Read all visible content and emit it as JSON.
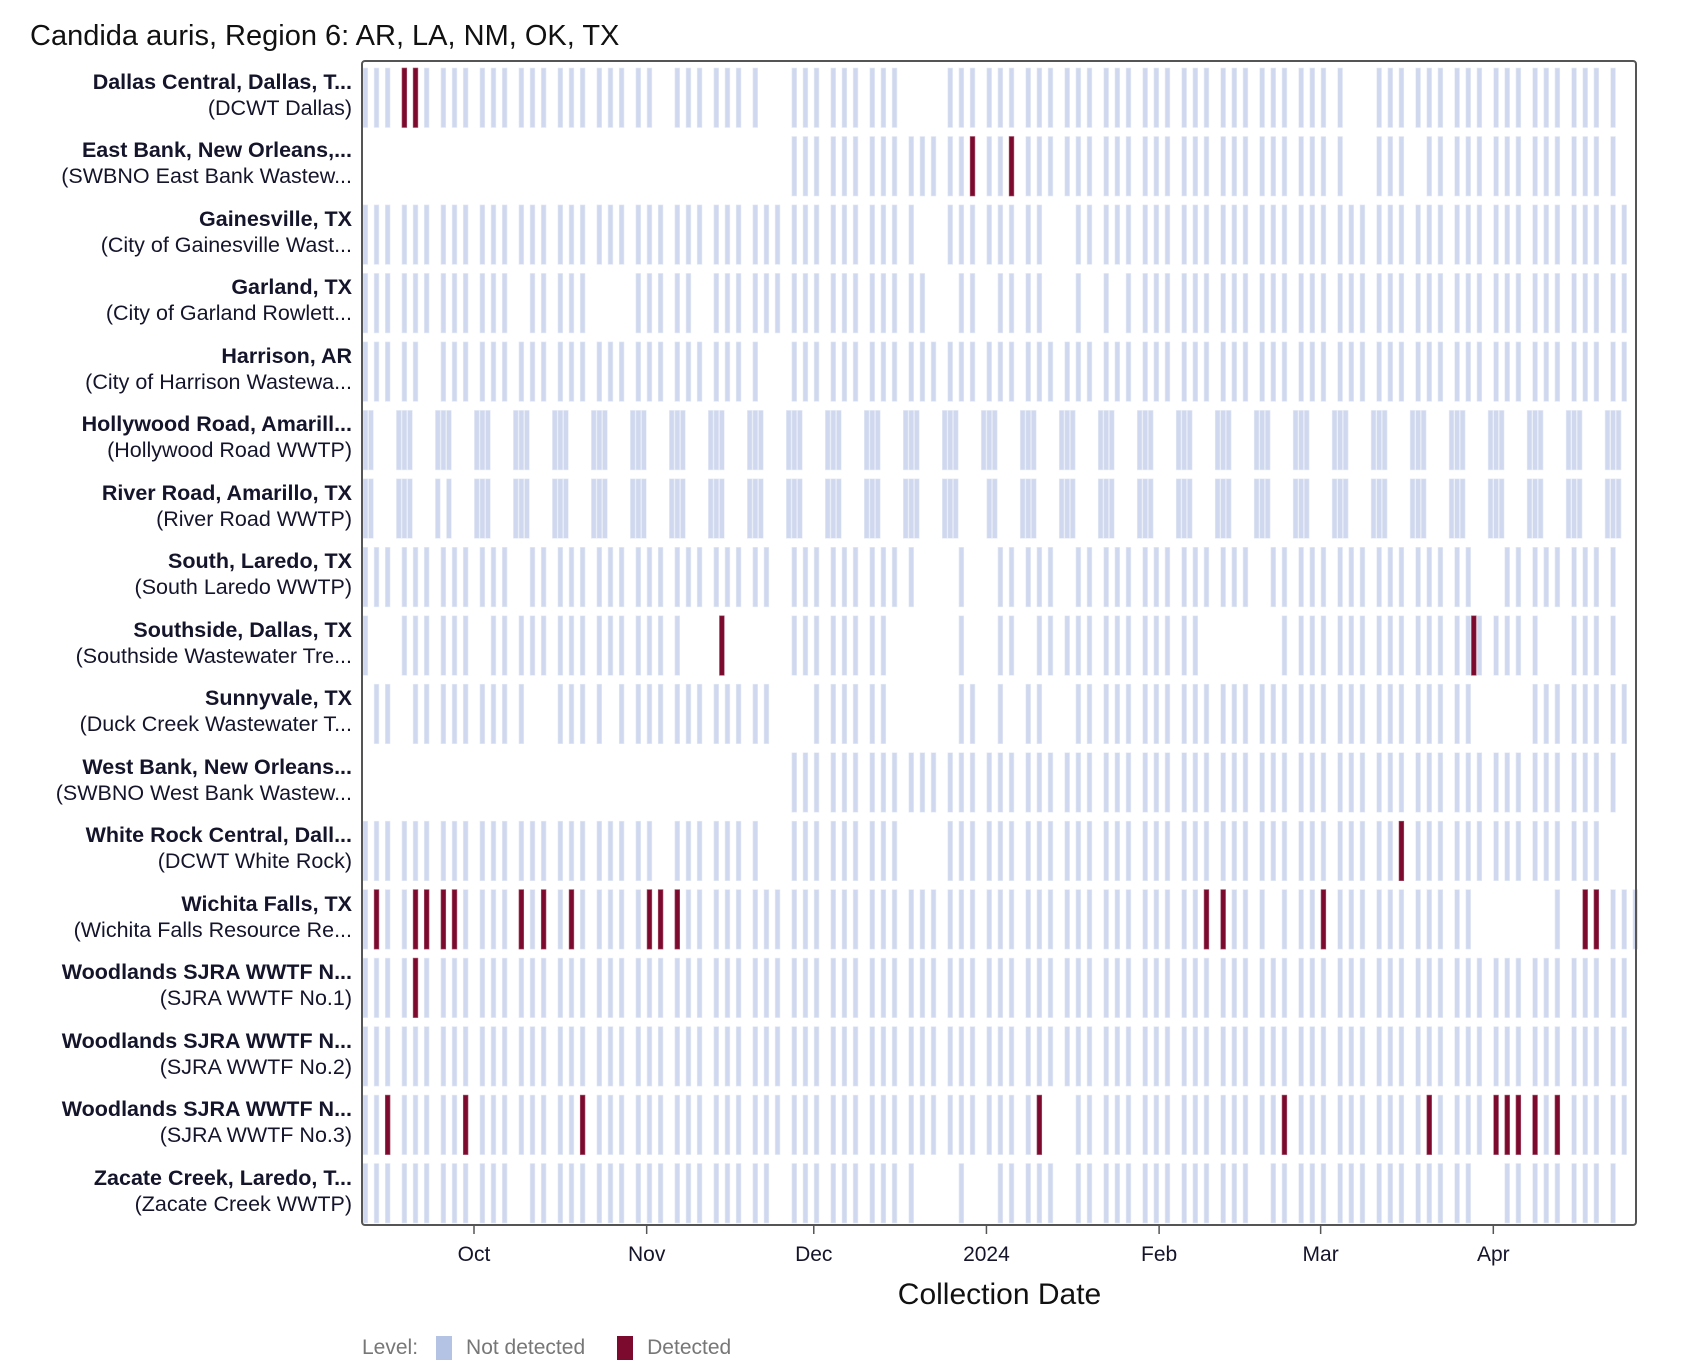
{
  "chart_data": {
    "type": "heatmap",
    "title": "Candida auris, Region 6: AR, LA, NM, OK, TX",
    "xlabel": "Collection Date",
    "xlim": [
      "2023-09-11",
      "2024-04-26"
    ],
    "x_ticks": [
      {
        "label": "Oct",
        "date": "2023-10-01"
      },
      {
        "label": "Nov",
        "date": "2023-11-01"
      },
      {
        "label": "Dec",
        "date": "2023-12-01"
      },
      {
        "label": "2024",
        "date": "2024-01-01"
      },
      {
        "label": "Feb",
        "date": "2024-02-01"
      },
      {
        "label": "Mar",
        "date": "2024-03-01"
      },
      {
        "label": "Apr",
        "date": "2024-04-01"
      }
    ],
    "legend": {
      "title": "Level:",
      "position": "bottom-left",
      "items": [
        {
          "label": "Not detected",
          "color": "#b4c3e4"
        },
        {
          "label": "Detected",
          "color": "#7b0a2e"
        }
      ]
    },
    "colors": {
      "not_detected": "#cfd8ee",
      "detected": "#7b0a2e",
      "frame": "#555555"
    },
    "rows": [
      {
        "site": "Dallas Central, Dallas, T...",
        "plant": "(DCWT Dallas)",
        "sample_days": [
          "Mon",
          "Wed",
          "Fri"
        ],
        "first_sample": "2023-09-11",
        "last_sample": "2024-04-22",
        "missing": [
          [
            "2023-11-03",
            "2023-11-03"
          ],
          [
            "2023-11-22",
            "2023-11-24"
          ],
          [
            "2023-12-18",
            "2023-12-22"
          ],
          [
            "2024-03-06",
            "2024-03-08"
          ]
        ],
        "detected": [
          "2023-09-18",
          "2023-09-20"
        ]
      },
      {
        "site": "East Bank, New Orleans,...",
        "plant": "(SWBNO East Bank Wastew...",
        "sample_days": [
          "Mon",
          "Wed",
          "Fri"
        ],
        "first_sample": "2023-11-27",
        "last_sample": "2024-04-22",
        "missing": [
          [
            "2024-03-06",
            "2024-03-08"
          ],
          [
            "2024-03-18",
            "2024-03-18"
          ]
        ],
        "detected": [
          "2023-12-29",
          "2024-01-05"
        ]
      },
      {
        "site": "Gainesville, TX",
        "plant": "(City of Gainesville Wast...",
        "sample_days": [
          "Mon",
          "Wed",
          "Fri"
        ],
        "first_sample": "2023-09-11",
        "last_sample": "2024-04-24",
        "missing": [
          [
            "2023-12-20",
            "2023-12-22"
          ],
          [
            "2024-01-12",
            "2024-01-15"
          ]
        ],
        "detected": []
      },
      {
        "site": "Garland, TX",
        "plant": "(City of Garland Rowlett...",
        "sample_days": [
          "Mon",
          "Wed",
          "Fri"
        ],
        "first_sample": "2023-09-11",
        "last_sample": "2024-04-24",
        "missing": [
          [
            "2023-10-09",
            "2023-10-09"
          ],
          [
            "2023-10-23",
            "2023-10-27"
          ],
          [
            "2023-11-10",
            "2023-11-10"
          ],
          [
            "2023-12-22",
            "2023-12-25"
          ],
          [
            "2024-01-01",
            "2024-01-01"
          ],
          [
            "2024-01-12",
            "2024-01-15"
          ],
          [
            "2024-01-19",
            "2024-01-19"
          ],
          [
            "2024-01-24",
            "2024-01-24"
          ]
        ],
        "detected": []
      },
      {
        "site": "Harrison, AR",
        "plant": "(City of Harrison Wastewa...",
        "sample_days": [
          "Mon",
          "Wed",
          "Fri"
        ],
        "first_sample": "2023-09-11",
        "last_sample": "2024-04-24",
        "missing": [
          [
            "2023-09-22",
            "2023-09-22"
          ],
          [
            "2023-11-22",
            "2023-11-24"
          ]
        ],
        "detected": []
      },
      {
        "site": "Hollywood Road, Amarill...",
        "plant": "(Hollywood Road WWTP)",
        "sample_days": [
          "Sun",
          "Mon",
          "Tue"
        ],
        "first_sample": "2023-09-11",
        "last_sample": "2024-04-23",
        "missing": [],
        "detected": []
      },
      {
        "site": "River Road, Amarillo, TX",
        "plant": "(River Road WWTP)",
        "sample_days": [
          "Sun",
          "Mon",
          "Tue"
        ],
        "first_sample": "2023-09-11",
        "last_sample": "2024-04-23",
        "missing": [
          [
            "2023-09-25",
            "2023-09-25"
          ],
          [
            "2023-12-31",
            "2023-12-31"
          ]
        ],
        "detected": []
      },
      {
        "site": "South, Laredo, TX",
        "plant": "(South Laredo WWTP)",
        "sample_days": [
          "Mon",
          "Wed",
          "Fri"
        ],
        "first_sample": "2023-09-11",
        "last_sample": "2024-04-22",
        "missing": [
          [
            "2023-10-09",
            "2023-10-09"
          ],
          [
            "2023-11-24",
            "2023-11-24"
          ],
          [
            "2023-12-20",
            "2023-12-26"
          ],
          [
            "2023-12-29",
            "2024-01-01"
          ],
          [
            "2024-01-15",
            "2024-01-15"
          ],
          [
            "2024-02-19",
            "2024-02-19"
          ],
          [
            "2024-03-29",
            "2024-04-01"
          ]
        ],
        "detected": []
      },
      {
        "site": "Southside, Dallas, TX",
        "plant": "(Southside Wastewater Tre...",
        "sample_days": [
          "Mon",
          "Wed",
          "Fri"
        ],
        "first_sample": "2023-09-11",
        "last_sample": "2024-04-22",
        "missing": [
          [
            "2023-09-13",
            "2023-09-15"
          ],
          [
            "2023-10-02",
            "2023-10-02"
          ],
          [
            "2023-11-08",
            "2023-11-13"
          ],
          [
            "2023-11-15",
            "2023-11-26"
          ],
          [
            "2023-12-15",
            "2023-12-26"
          ],
          [
            "2023-12-28",
            "2024-01-02"
          ],
          [
            "2024-01-08",
            "2024-01-08"
          ],
          [
            "2024-02-09",
            "2024-02-21"
          ],
          [
            "2024-04-10",
            "2024-04-12"
          ]
        ],
        "detected": [
          "2023-11-14",
          "2024-03-28"
        ]
      },
      {
        "site": "Sunnyvale, TX",
        "plant": "(Duck Creek Wastewater T...",
        "sample_days": [
          "Mon",
          "Wed",
          "Fri"
        ],
        "first_sample": "2023-09-13",
        "last_sample": "2024-04-24",
        "missing": [
          [
            "2023-09-18",
            "2023-09-18"
          ],
          [
            "2023-10-11",
            "2023-10-13"
          ],
          [
            "2023-10-25",
            "2023-10-25"
          ],
          [
            "2023-11-23",
            "2023-11-29"
          ],
          [
            "2023-12-15",
            "2023-12-18"
          ],
          [
            "2023-12-20",
            "2023-12-26"
          ],
          [
            "2023-12-31",
            "2024-01-02"
          ],
          [
            "2024-01-05",
            "2024-01-05"
          ],
          [
            "2024-01-12",
            "2024-01-15"
          ],
          [
            "2024-03-29",
            "2024-04-05"
          ]
        ],
        "detected": []
      },
      {
        "site": "West Bank, New Orleans...",
        "plant": "(SWBNO West Bank Wastew...",
        "sample_days": [
          "Mon",
          "Wed",
          "Fri"
        ],
        "first_sample": "2023-11-27",
        "last_sample": "2024-04-22",
        "missing": [],
        "detected": []
      },
      {
        "site": "White Rock Central, Dall...",
        "plant": "(DCWT White Rock)",
        "sample_days": [
          "Mon",
          "Wed",
          "Fri"
        ],
        "first_sample": "2023-09-11",
        "last_sample": "2024-04-19",
        "missing": [
          [
            "2023-11-03",
            "2023-11-03"
          ],
          [
            "2023-11-22",
            "2023-11-24"
          ],
          [
            "2023-12-18",
            "2023-12-22"
          ]
        ],
        "detected": [
          "2024-03-15"
        ]
      },
      {
        "site": "Wichita Falls, TX",
        "plant": "(Wichita Falls Resource Re...",
        "sample_days": [
          "Mon",
          "Wed",
          "Fri"
        ],
        "first_sample": "2023-09-11",
        "last_sample": "2024-04-26",
        "missing": [
          [
            "2024-02-21",
            "2024-02-21"
          ],
          [
            "2024-03-29",
            "2024-04-10"
          ],
          [
            "2024-04-15",
            "2024-04-15"
          ]
        ],
        "detected": [
          "2023-09-13",
          "2023-09-20",
          "2023-09-22",
          "2023-09-25",
          "2023-09-27",
          "2023-10-09",
          "2023-10-13",
          "2023-10-18",
          "2023-11-01",
          "2023-11-03",
          "2023-11-06",
          "2024-02-09",
          "2024-02-12",
          "2024-03-01",
          "2024-04-17",
          "2024-04-19"
        ]
      },
      {
        "site": "Woodlands SJRA WWTF N...",
        "plant": "(SJRA WWTF No.1)",
        "sample_days": [
          "Mon",
          "Wed",
          "Fri"
        ],
        "first_sample": "2023-09-11",
        "last_sample": "2024-04-24",
        "missing": [],
        "detected": [
          "2023-09-20"
        ]
      },
      {
        "site": "Woodlands SJRA WWTF N...",
        "plant": "(SJRA WWTF No.2)",
        "sample_days": [
          "Mon",
          "Wed",
          "Fri"
        ],
        "first_sample": "2023-09-11",
        "last_sample": "2024-04-24",
        "missing": [],
        "detected": []
      },
      {
        "site": "Woodlands SJRA WWTF N...",
        "plant": "(SJRA WWTF No.3)",
        "sample_days": [
          "Mon",
          "Wed",
          "Fri"
        ],
        "first_sample": "2023-09-11",
        "last_sample": "2024-04-24",
        "missing": [
          [
            "2024-01-12",
            "2024-01-15"
          ]
        ],
        "detected": [
          "2023-09-15",
          "2023-09-29",
          "2023-10-20",
          "2024-01-10",
          "2024-02-23",
          "2024-03-20",
          "2024-04-01",
          "2024-04-03",
          "2024-04-05",
          "2024-04-08",
          "2024-04-12"
        ]
      },
      {
        "site": "Zacate Creek, Laredo, T...",
        "plant": "(Zacate Creek WWTP)",
        "sample_days": [
          "Mon",
          "Wed",
          "Fri"
        ],
        "first_sample": "2023-09-11",
        "last_sample": "2024-04-22",
        "missing": [
          [
            "2023-10-09",
            "2023-10-09"
          ],
          [
            "2023-11-24",
            "2023-11-24"
          ],
          [
            "2023-12-20",
            "2023-12-26"
          ],
          [
            "2023-12-29",
            "2024-01-01"
          ],
          [
            "2024-01-15",
            "2024-01-15"
          ],
          [
            "2024-02-19",
            "2024-02-19"
          ],
          [
            "2024-03-29",
            "2024-04-01"
          ]
        ],
        "detected": []
      }
    ]
  }
}
